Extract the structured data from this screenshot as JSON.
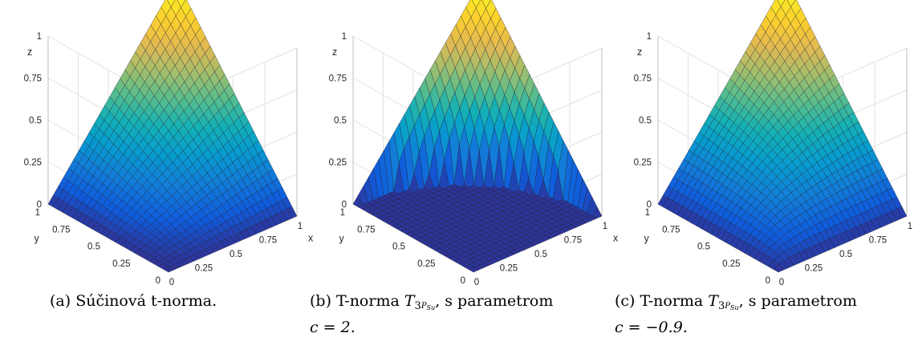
{
  "panels": [
    {
      "surface": "product",
      "caption": {
        "label": "(a)",
        "text": "Súčinová t-norma.",
        "line2": ""
      },
      "tick_labels": {
        "z": [
          "0",
          "0.25",
          "0.5",
          "0.75",
          "1"
        ],
        "y": [
          "0",
          "0.25",
          "0.5",
          "0.75",
          "1"
        ],
        "x": [
          "0",
          "0.25",
          "0.5",
          "0.75",
          "1"
        ]
      },
      "axis_labels": {
        "x": "x",
        "y": "y",
        "z": "z"
      }
    },
    {
      "surface": "power",
      "c": 2,
      "caption": {
        "label": "(b)",
        "text_before": "T-norma ",
        "math": "T",
        "sub": "3",
        "subsub1": "P",
        "subsub2": "Su",
        "text_after": ", s parametrom",
        "line2": "c = 2."
      },
      "tick_labels": {
        "z": [
          "0",
          "0.25",
          "0.5",
          "0.75",
          "1"
        ],
        "y": [
          "0",
          "0.25",
          "0.5",
          "0.75",
          "1"
        ],
        "x": [
          "0",
          "0.25",
          "0.5",
          "0.75",
          "1"
        ]
      },
      "axis_labels": {
        "x": "x",
        "y": "y",
        "z": "z"
      }
    },
    {
      "surface": "power",
      "c": -0.9,
      "caption": {
        "label": "(c)",
        "text_before": "T-norma ",
        "math": "T",
        "sub": "3",
        "subsub1": "P",
        "subsub2": "Su",
        "text_after": ", s parametrom",
        "line2": "c = −0.9."
      },
      "tick_labels": {
        "z": [
          "0",
          "0.25",
          "0.5",
          "0.75",
          "1"
        ],
        "y": [
          "0",
          "0.25",
          "0.5",
          "0.75",
          "1"
        ],
        "x": [
          "0",
          "0.25",
          "0.5",
          "0.75",
          "1"
        ]
      },
      "axis_labels": {
        "x": "x",
        "y": "y",
        "z": "z"
      }
    }
  ],
  "colormap": "parula"
}
